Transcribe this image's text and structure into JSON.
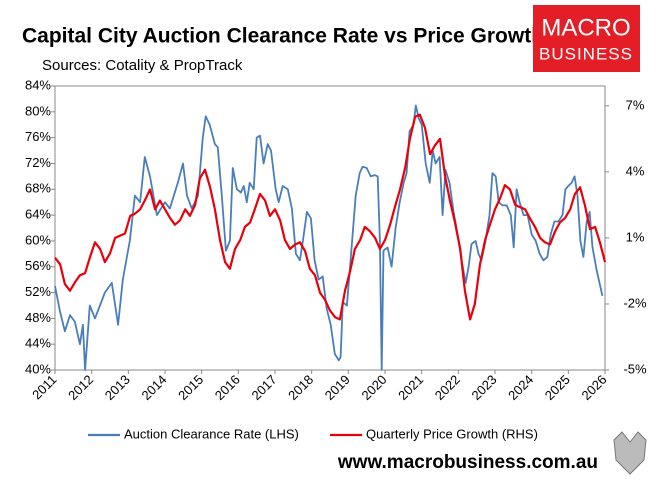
{
  "chart_data": {
    "type": "line",
    "title": "Capital City Auction Clearance Rate vs Price Growth",
    "subtitle": "Sources: Cotality & PropTrack",
    "xlim": [
      2011,
      2026
    ],
    "xticks": [
      2011,
      2012,
      2013,
      2014,
      2015,
      2016,
      2017,
      2018,
      2019,
      2020,
      2021,
      2022,
      2023,
      2024,
      2025,
      2026
    ],
    "ylim": [
      40,
      84
    ],
    "yticks": [
      {
        "value": 40,
        "label": "40%"
      },
      {
        "value": 44,
        "label": "44%"
      },
      {
        "value": 48,
        "label": "48%"
      },
      {
        "value": 52,
        "label": "52%"
      },
      {
        "value": 56,
        "label": "56%"
      },
      {
        "value": 60,
        "label": "60%"
      },
      {
        "value": 64,
        "label": "64%"
      },
      {
        "value": 68,
        "label": "68%"
      },
      {
        "value": 72,
        "label": "72%"
      },
      {
        "value": 76,
        "label": "76%"
      },
      {
        "value": 80,
        "label": "80%"
      },
      {
        "value": 84,
        "label": "84%"
      }
    ],
    "y2lim": [
      -5,
      7.9
    ],
    "y2ticks": [
      {
        "value": -5,
        "label": "-5%"
      },
      {
        "value": -2,
        "label": "-2%"
      },
      {
        "value": 1,
        "label": "1%"
      },
      {
        "value": 4,
        "label": "4%"
      },
      {
        "value": 7,
        "label": "7%"
      }
    ],
    "grid": false,
    "legend": "bottom",
    "series": [
      {
        "name": "Auction Clearance Rate (LHS)",
        "color": "#4a7ebb",
        "axis": "y",
        "x": [
          2011.0,
          2011.14,
          2011.27,
          2011.41,
          2011.54,
          2011.68,
          2011.76,
          2011.82,
          2011.95,
          2012.09,
          2012.36,
          2012.55,
          2012.72,
          2012.85,
          2013.04,
          2013.18,
          2013.32,
          2013.45,
          2013.59,
          2013.78,
          2014.0,
          2014.13,
          2014.35,
          2014.49,
          2014.6,
          2014.73,
          2014.9,
          2015.03,
          2015.11,
          2015.22,
          2015.36,
          2015.44,
          2015.55,
          2015.66,
          2015.77,
          2015.85,
          2015.96,
          2016.07,
          2016.15,
          2016.23,
          2016.31,
          2016.42,
          2016.5,
          2016.59,
          2016.69,
          2016.8,
          2016.89,
          2017.02,
          2017.1,
          2017.21,
          2017.35,
          2017.46,
          2017.57,
          2017.68,
          2017.76,
          2017.87,
          2017.98,
          2018.08,
          2018.19,
          2018.3,
          2018.41,
          2018.52,
          2018.63,
          2018.74,
          2018.79,
          2018.85,
          2018.96,
          2019.09,
          2019.2,
          2019.31,
          2019.39,
          2019.5,
          2019.61,
          2019.72,
          2019.8,
          2019.86,
          2019.91,
          2019.96,
          2020.07,
          2020.18,
          2020.29,
          2020.4,
          2020.51,
          2020.59,
          2020.67,
          2020.78,
          2020.84,
          2020.92,
          2021.0,
          2021.11,
          2021.22,
          2021.3,
          2021.38,
          2021.49,
          2021.57,
          2021.65,
          2021.76,
          2021.87,
          2021.98,
          2022.09,
          2022.2,
          2022.28,
          2022.36,
          2022.47,
          2022.55,
          2022.63,
          2022.74,
          2022.85,
          2022.93,
          2023.02,
          2023.1,
          2023.21,
          2023.32,
          2023.43,
          2023.51,
          2023.59,
          2023.67,
          2023.78,
          2023.89,
          2024.0,
          2024.11,
          2024.22,
          2024.32,
          2024.43,
          2024.52,
          2024.62,
          2024.73,
          2024.84,
          2024.92,
          2025.0,
          2025.09,
          2025.17,
          2025.25,
          2025.33,
          2025.41,
          2025.5,
          2025.58,
          2025.66,
          2025.77,
          2025.93
        ],
        "values": [
          53,
          49,
          46,
          48.5,
          47.5,
          44,
          47,
          40,
          50,
          48,
          52,
          53.5,
          47,
          54,
          60,
          67,
          66,
          73,
          70,
          64,
          66,
          65,
          69,
          72,
          67,
          65,
          67,
          76,
          79.3,
          78,
          75,
          74.5,
          67,
          58.5,
          60,
          71.3,
          68,
          67.5,
          68.5,
          66,
          69,
          68,
          76,
          76.3,
          72,
          75,
          74,
          68,
          66,
          68.5,
          68,
          65,
          58,
          57,
          60,
          64.5,
          63.5,
          57,
          54,
          54.5,
          49.5,
          47,
          42.5,
          41.5,
          42,
          50.5,
          50,
          59,
          67,
          70.5,
          71.5,
          71.3,
          70,
          70.2,
          70,
          60,
          40,
          58.5,
          59,
          56,
          62,
          66,
          69,
          70.5,
          77,
          78,
          81,
          79,
          78,
          72,
          69,
          74,
          72,
          73,
          64,
          71,
          69,
          64.5,
          61,
          57,
          53.5,
          56,
          59.5,
          60,
          58,
          57,
          60,
          64,
          70.5,
          70,
          66,
          65.5,
          65.5,
          64,
          59,
          68,
          66,
          64,
          64,
          61,
          60,
          58,
          57,
          57.5,
          61,
          63,
          63,
          64,
          68,
          68.5,
          69,
          70,
          67,
          60,
          57.5,
          63,
          64.5,
          59,
          55.5,
          51.5
        ]
      },
      {
        "name": "Quarterly Price Growth (RHS)",
        "color": "#e8000b",
        "axis": "y2",
        "x": [
          2011.0,
          2011.14,
          2011.27,
          2011.41,
          2011.55,
          2011.68,
          2011.82,
          2011.95,
          2012.09,
          2012.23,
          2012.36,
          2012.5,
          2012.64,
          2012.77,
          2012.91,
          2013.05,
          2013.18,
          2013.32,
          2013.45,
          2013.59,
          2013.73,
          2013.86,
          2014.0,
          2014.14,
          2014.27,
          2014.41,
          2014.55,
          2014.68,
          2014.82,
          2014.95,
          2015.09,
          2015.23,
          2015.36,
          2015.5,
          2015.64,
          2015.77,
          2015.91,
          2016.05,
          2016.18,
          2016.32,
          2016.45,
          2016.59,
          2016.73,
          2016.86,
          2017.0,
          2017.14,
          2017.27,
          2017.41,
          2017.55,
          2017.68,
          2017.82,
          2017.95,
          2018.09,
          2018.23,
          2018.36,
          2018.5,
          2018.64,
          2018.77,
          2018.91,
          2019.05,
          2019.18,
          2019.32,
          2019.45,
          2019.59,
          2019.73,
          2019.86,
          2020.0,
          2020.14,
          2020.27,
          2020.41,
          2020.55,
          2020.68,
          2020.82,
          2020.95,
          2021.09,
          2021.23,
          2021.36,
          2021.5,
          2021.64,
          2021.77,
          2021.91,
          2022.05,
          2022.18,
          2022.32,
          2022.45,
          2022.59,
          2022.73,
          2022.86,
          2023.0,
          2023.14,
          2023.27,
          2023.41,
          2023.55,
          2023.68,
          2023.82,
          2023.95,
          2024.09,
          2024.23,
          2024.36,
          2024.5,
          2024.64,
          2024.77,
          2024.91,
          2025.05,
          2025.18,
          2025.32,
          2025.45,
          2025.59,
          2025.73,
          2025.86,
          2026.0
        ],
        "values": [
          0.1,
          -0.2,
          -1.1,
          -1.4,
          -1.0,
          -0.7,
          -0.6,
          0.1,
          0.8,
          0.5,
          -0.1,
          0.3,
          1.0,
          1.1,
          1.2,
          2.0,
          2.1,
          2.3,
          2.7,
          3.2,
          2.3,
          2.7,
          2.3,
          1.9,
          1.6,
          1.8,
          2.3,
          2.0,
          2.5,
          3.7,
          4.1,
          3.3,
          2.3,
          0.9,
          -0.1,
          -0.4,
          0.5,
          0.9,
          1.5,
          1.7,
          2.3,
          3.0,
          2.7,
          2.0,
          2.3,
          1.8,
          0.9,
          0.5,
          0.7,
          0.8,
          0.4,
          -0.4,
          -0.7,
          -1.5,
          -1.8,
          -2.3,
          -2.6,
          -2.7,
          -1.4,
          -0.5,
          0.5,
          0.9,
          1.5,
          1.3,
          1.0,
          0.5,
          0.9,
          1.6,
          2.4,
          3.2,
          4.2,
          5.5,
          6.5,
          6.6,
          6.0,
          4.8,
          5.2,
          5.5,
          3.8,
          2.7,
          1.7,
          0.5,
          -1.4,
          -2.7,
          -2.0,
          -0.2,
          0.9,
          1.6,
          2.3,
          2.8,
          3.4,
          3.2,
          2.5,
          2.4,
          2.3,
          1.9,
          1.5,
          1.0,
          0.8,
          0.7,
          1.3,
          1.7,
          1.9,
          2.3,
          3.0,
          3.3,
          2.5,
          1.4,
          1.5,
          0.8,
          -0.1
        ]
      }
    ]
  },
  "brand": {
    "logo": [
      "MACRO",
      "BUSINESS"
    ],
    "website": "www.macrobusiness.com.au"
  }
}
